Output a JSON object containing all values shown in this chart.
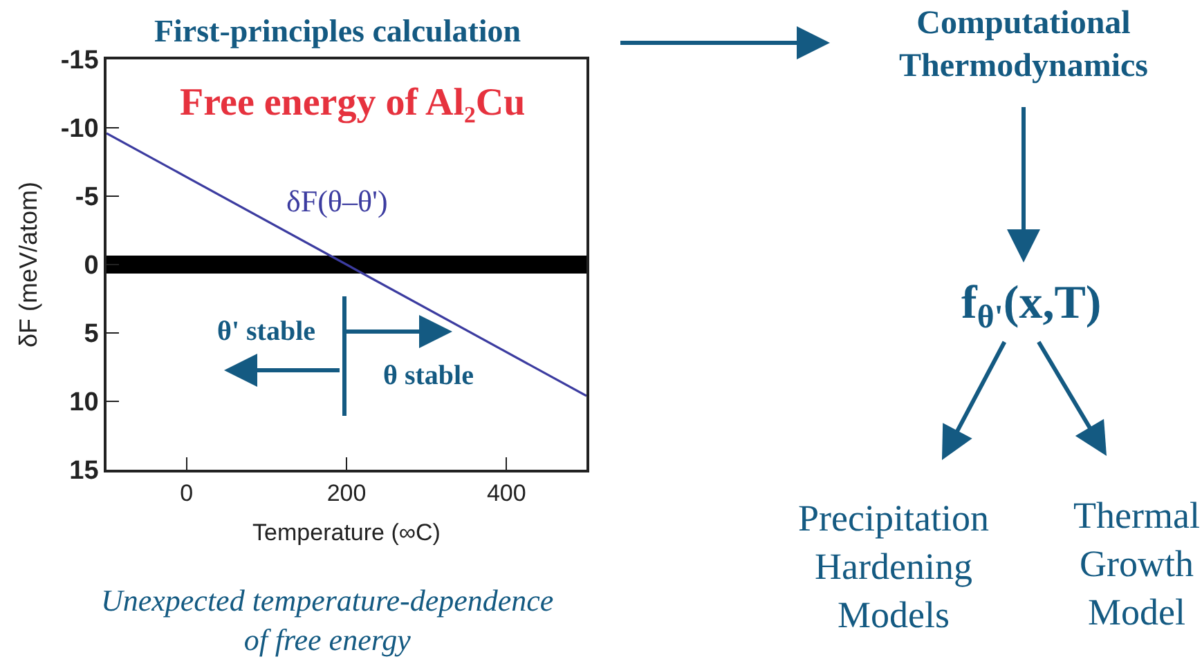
{
  "chart_data": {
    "type": "line",
    "title": "First-principles calculation",
    "subtitle": "Free energy of Al₂Cu",
    "xlabel": "Temperature (∞C)",
    "ylabel": "δF (meV/atom)",
    "x": [
      -100,
      500
    ],
    "series": [
      {
        "name": "δF(θ–θ')",
        "color": "#3c3ca0",
        "values": [
          -9.6,
          9.6
        ]
      }
    ],
    "xlim": [
      -100,
      500
    ],
    "xticks": [
      0,
      200,
      400
    ],
    "ylim": [
      15,
      -15
    ],
    "yticks": [
      -15,
      -10,
      -5,
      0,
      5,
      10,
      15
    ],
    "ref_lines": [
      {
        "axis": "y",
        "value": 0,
        "color": "#000000"
      }
    ],
    "line_style": "solid",
    "annotations": [
      "θ' stable",
      "θ stable",
      "Unexpected temperature-dependence\nof free energy",
      "Computational\nThermodynamics",
      "f$_{θ'}$(x,T)",
      "Precipitation\nHardening\nModels",
      "Thermal\nGrowth\nModel"
    ]
  }
}
